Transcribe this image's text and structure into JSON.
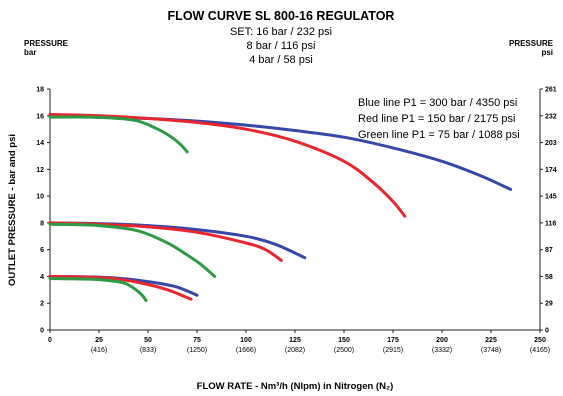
{
  "chart_data": {
    "type": "line",
    "title": "FLOW CURVE SL 800-16 REGULATOR",
    "subtitle_lines": [
      "SET: 16 bar / 232 psi",
      "8 bar / 116 psi",
      "4 bar / 58 psi"
    ],
    "left_unit": [
      "PRESSURE",
      "bar"
    ],
    "right_unit": [
      "PRESSURE",
      "psi"
    ],
    "ylabel": "OUTLET PRESSURE - bar and psi",
    "xlabel": "FLOW RATE - Nm³/h (Nlpm) in Nitrogen (N₂)",
    "xlim": [
      0,
      250
    ],
    "ylim": [
      0,
      18
    ],
    "x_ticks": [
      {
        "v": 0,
        "label": "0",
        "sub": ""
      },
      {
        "v": 25,
        "label": "25",
        "sub": "(416)"
      },
      {
        "v": 50,
        "label": "50",
        "sub": "(833)"
      },
      {
        "v": 75,
        "label": "75",
        "sub": "(1250)"
      },
      {
        "v": 100,
        "label": "100",
        "sub": "(1666)"
      },
      {
        "v": 125,
        "label": "125",
        "sub": "(2082)"
      },
      {
        "v": 150,
        "label": "150",
        "sub": "(2500)"
      },
      {
        "v": 175,
        "label": "175",
        "sub": "(2915)"
      },
      {
        "v": 200,
        "label": "200",
        "sub": "(3332)"
      },
      {
        "v": 225,
        "label": "225",
        "sub": "(3748)"
      },
      {
        "v": 250,
        "label": "250",
        "sub": "(4165)"
      }
    ],
    "y_ticks_left": [
      "0",
      "2",
      "4",
      "6",
      "8",
      "10",
      "12",
      "14",
      "16",
      "18"
    ],
    "y_ticks_right": [
      "0",
      "29",
      "58",
      "87",
      "116",
      "145",
      "174",
      "203",
      "232",
      "261"
    ],
    "legend_lines": [
      "Blue line P1 = 300 bar / 4350 psi",
      "Red line P1 = 150 bar / 2175 psi",
      "Green line P1 = 75 bar / 1088 psi"
    ],
    "colors": {
      "blue": "#3747a8",
      "red": "#e8262f",
      "green": "#2f9a46"
    },
    "series": [
      {
        "color": "blue",
        "set": "16 bar",
        "points": [
          [
            0,
            16.0
          ],
          [
            25,
            15.9
          ],
          [
            50,
            15.8
          ],
          [
            75,
            15.6
          ],
          [
            100,
            15.3
          ],
          [
            125,
            14.9
          ],
          [
            150,
            14.4
          ],
          [
            175,
            13.6
          ],
          [
            200,
            12.6
          ],
          [
            220,
            11.5
          ],
          [
            235,
            10.5
          ]
        ]
      },
      {
        "color": "red",
        "set": "16 bar",
        "points": [
          [
            0,
            16.1
          ],
          [
            25,
            16.0
          ],
          [
            50,
            15.8
          ],
          [
            75,
            15.5
          ],
          [
            100,
            15.0
          ],
          [
            125,
            14.1
          ],
          [
            150,
            12.6
          ],
          [
            165,
            11.0
          ],
          [
            175,
            9.6
          ],
          [
            181,
            8.5
          ]
        ]
      },
      {
        "color": "green",
        "set": "16 bar",
        "points": [
          [
            0,
            15.9
          ],
          [
            20,
            15.9
          ],
          [
            35,
            15.8
          ],
          [
            45,
            15.6
          ],
          [
            55,
            15.0
          ],
          [
            62,
            14.4
          ],
          [
            67,
            13.8
          ],
          [
            70,
            13.3
          ]
        ]
      },
      {
        "color": "blue",
        "set": "8 bar",
        "points": [
          [
            0,
            8.0
          ],
          [
            25,
            7.95
          ],
          [
            50,
            7.8
          ],
          [
            75,
            7.5
          ],
          [
            100,
            7.0
          ],
          [
            115,
            6.4
          ],
          [
            130,
            5.4
          ]
        ]
      },
      {
        "color": "red",
        "set": "8 bar",
        "points": [
          [
            0,
            8.0
          ],
          [
            25,
            7.9
          ],
          [
            50,
            7.7
          ],
          [
            75,
            7.3
          ],
          [
            100,
            6.5
          ],
          [
            110,
            6.0
          ],
          [
            118,
            5.2
          ]
        ]
      },
      {
        "color": "green",
        "set": "8 bar",
        "points": [
          [
            0,
            7.9
          ],
          [
            25,
            7.8
          ],
          [
            45,
            7.4
          ],
          [
            60,
            6.5
          ],
          [
            70,
            5.6
          ],
          [
            77,
            4.9
          ],
          [
            84,
            4.0
          ]
        ]
      },
      {
        "color": "blue",
        "set": "4 bar",
        "points": [
          [
            0,
            4.0
          ],
          [
            25,
            3.95
          ],
          [
            40,
            3.8
          ],
          [
            55,
            3.5
          ],
          [
            65,
            3.2
          ],
          [
            75,
            2.6
          ]
        ]
      },
      {
        "color": "red",
        "set": "4 bar",
        "points": [
          [
            0,
            4.0
          ],
          [
            20,
            3.95
          ],
          [
            35,
            3.8
          ],
          [
            50,
            3.4
          ],
          [
            60,
            3.0
          ],
          [
            67,
            2.6
          ],
          [
            72,
            2.3
          ]
        ]
      },
      {
        "color": "green",
        "set": "4 bar",
        "points": [
          [
            0,
            3.85
          ],
          [
            20,
            3.8
          ],
          [
            30,
            3.7
          ],
          [
            38,
            3.5
          ],
          [
            43,
            3.1
          ],
          [
            47,
            2.6
          ],
          [
            49,
            2.2
          ]
        ]
      }
    ]
  }
}
